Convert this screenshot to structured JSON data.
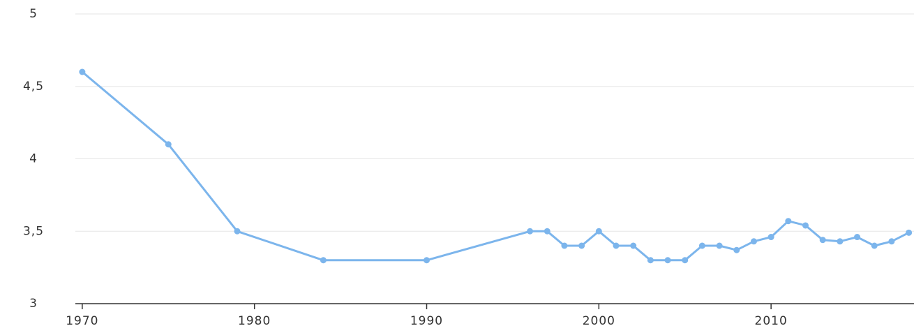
{
  "chart_data": {
    "type": "line",
    "x": [
      1970,
      1975,
      1979,
      1984,
      1990,
      1996,
      1997,
      1998,
      1999,
      2000,
      2001,
      2002,
      2003,
      2004,
      2005,
      2006,
      2007,
      2008,
      2009,
      2010,
      2011,
      2012,
      2013,
      2014,
      2015,
      2016,
      2017,
      2018
    ],
    "series": [
      {
        "color": "#7cb5ec",
        "values": [
          4.6,
          4.1,
          3.5,
          3.3,
          3.3,
          3.5,
          3.5,
          3.4,
          3.4,
          3.5,
          3.4,
          3.4,
          3.3,
          3.3,
          3.3,
          3.4,
          3.4,
          3.37,
          3.43,
          3.46,
          3.57,
          3.54,
          3.44,
          3.43,
          3.46,
          3.4,
          3.43,
          3.49
        ]
      }
    ],
    "xlim": [
      1969.6,
      2018.3
    ],
    "xticks": [
      1970,
      1980,
      1990,
      2000,
      2010
    ],
    "ylim": [
      3,
      5
    ],
    "yticks": [
      3,
      {
        "value": 3.5,
        "label": "3,5"
      },
      4,
      {
        "value": 4.5,
        "label": "4,5"
      },
      5
    ],
    "grid": true
  }
}
